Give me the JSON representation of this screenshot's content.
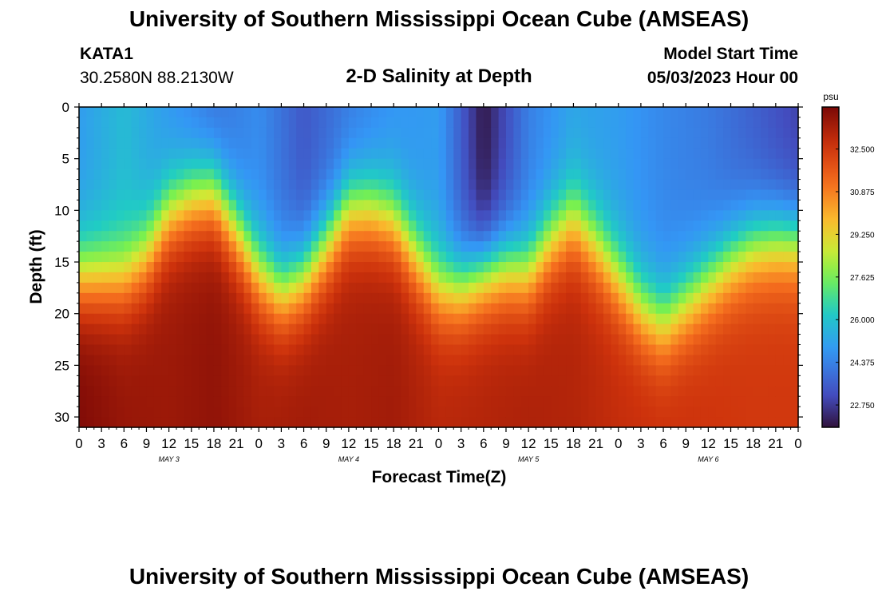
{
  "header": {
    "title": "University of Southern Mississippi Ocean Cube (AMSEAS)",
    "station_name": "KATA1",
    "station_coords": "30.2580N  88.2130W",
    "plot_title": "2-D Salinity at Depth",
    "model_start_label": "Model Start Time",
    "model_start_value": "05/03/2023 Hour 00"
  },
  "footer": {
    "title": "University of Southern Mississippi Ocean Cube (AMSEAS)"
  },
  "colors": {
    "background": "#ffffff",
    "axis": "#000000"
  },
  "chart_data": {
    "type": "heatmap",
    "title": "2-D Salinity at Depth",
    "xlabel": "Forecast Time(Z)",
    "ylabel": "Depth (ft)",
    "x_range_hours": [
      0,
      96
    ],
    "ylim": [
      0,
      31
    ],
    "y_inverted": true,
    "x_tick_labels": [
      "0",
      "3",
      "6",
      "9",
      "12",
      "15",
      "18",
      "21",
      "0",
      "3",
      "6",
      "9",
      "12",
      "15",
      "18",
      "21",
      "0",
      "3",
      "6",
      "9",
      "12",
      "15",
      "18",
      "21",
      "0",
      "3",
      "6",
      "9",
      "12",
      "15",
      "18",
      "21",
      "0"
    ],
    "y_tick_labels": [
      "0",
      "5",
      "10",
      "15",
      "20",
      "25",
      "30"
    ],
    "y_ticks": [
      0,
      5,
      10,
      15,
      20,
      25,
      30
    ],
    "day_labels": [
      {
        "label": "MAY 3",
        "hour": 12
      },
      {
        "label": "MAY 4",
        "hour": 36
      },
      {
        "label": "MAY 5",
        "hour": 60
      },
      {
        "label": "MAY 6",
        "hour": 84
      }
    ],
    "colorbar": {
      "unit": "psu",
      "min": 21.9,
      "max": 34.1,
      "tick_labels": [
        "32.500",
        "30.875",
        "29.250",
        "27.625",
        "26.000",
        "24.375",
        "22.750"
      ],
      "ticks": [
        32.5,
        30.875,
        29.25,
        27.625,
        26.0,
        24.375,
        22.75
      ]
    },
    "halocline_depth_ft": {
      "hours": [
        0,
        3,
        6,
        9,
        12,
        15,
        18,
        21,
        24,
        27,
        30,
        33,
        36,
        39,
        42,
        45,
        48,
        51,
        54,
        57,
        60,
        63,
        66,
        69,
        72,
        75,
        78,
        81,
        84,
        87,
        90,
        93,
        96
      ],
      "values": [
        16.5,
        16.5,
        16.5,
        14.5,
        10.5,
        9.0,
        8.5,
        12.0,
        16.0,
        18.0,
        16.5,
        13.5,
        10.0,
        10.0,
        11.0,
        14.5,
        17.5,
        17.5,
        16.0,
        15.5,
        16.0,
        13.0,
        11.0,
        13.5,
        16.5,
        19.5,
        21.0,
        19.0,
        17.0,
        15.0,
        13.5,
        13.0,
        13.0
      ]
    },
    "surface_salinity_psu": {
      "hours": [
        0,
        6,
        12,
        18,
        24,
        30,
        36,
        42,
        48,
        54,
        60,
        66,
        72,
        78,
        84,
        90,
        96
      ],
      "values": [
        25.0,
        25.8,
        24.9,
        24.0,
        24.6,
        23.4,
        24.2,
        24.8,
        25.0,
        22.0,
        24.3,
        25.2,
        25.0,
        24.5,
        24.2,
        23.6,
        22.9
      ]
    },
    "bottom_salinity_psu": {
      "hours": [
        0,
        6,
        12,
        18,
        24,
        30,
        36,
        42,
        48,
        54,
        60,
        66,
        72,
        78,
        84,
        90,
        96
      ],
      "values": [
        34.0,
        33.6,
        33.5,
        33.7,
        33.3,
        33.4,
        33.3,
        33.4,
        33.0,
        33.1,
        33.2,
        33.1,
        32.8,
        32.7,
        32.6,
        32.5,
        32.5
      ]
    }
  }
}
